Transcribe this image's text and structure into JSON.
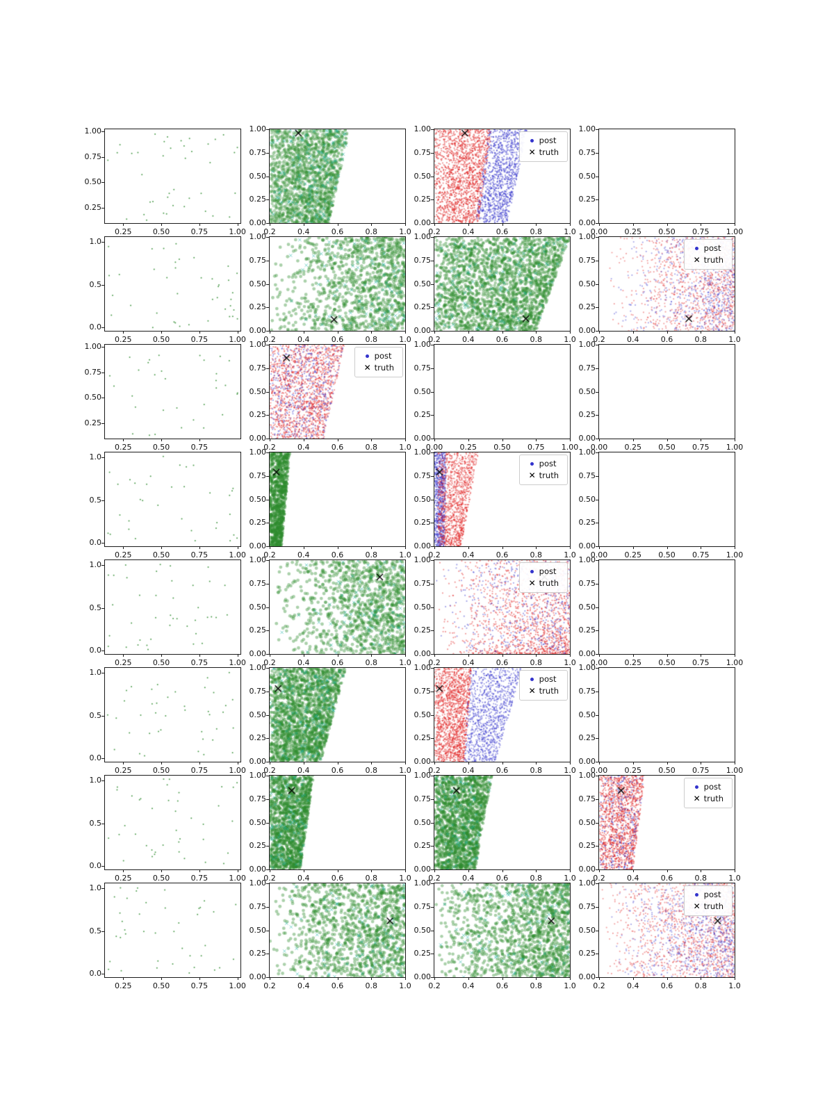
{
  "legend": {
    "post_label": "post",
    "truth_label": "truth"
  },
  "colors": {
    "green": "#2e8b2e",
    "teal": "#1fb5a9",
    "red": "#e02020",
    "blue": "#3333cc",
    "truth": "#000000"
  },
  "chart_data": {
    "type": "scatter",
    "description": "8x4 grid of posterior-sample scatter subplots with truth markers",
    "rows": 8,
    "cols": 4,
    "tick_presets": {
      "A": {
        "labels": [
          "0.25",
          "0.50",
          "0.75",
          "1.00"
        ],
        "range": [
          0.13,
          1.02
        ]
      },
      "A3": {
        "labels": [
          "0.25",
          "0.50",
          "0.75"
        ],
        "range": [
          0.13,
          1.02
        ]
      },
      "B": {
        "labels": [
          "0.2",
          "0.4",
          "0.6",
          "0.8",
          "1.0"
        ],
        "range": [
          0.2,
          1.0
        ]
      },
      "C": {
        "labels": [
          "0.00",
          "0.25",
          "0.50",
          "0.75",
          "1.00"
        ],
        "range": [
          0.0,
          1.0
        ]
      },
      "yA": {
        "labels": [
          "0.25",
          "0.50",
          "0.75",
          "1.00"
        ],
        "range": [
          0.1,
          1.02
        ]
      },
      "yB": {
        "labels": [
          "0.0",
          "0.5",
          "1.0"
        ],
        "range": [
          -0.04,
          1.06
        ]
      },
      "yC": {
        "labels": [
          "0.00",
          "0.25",
          "0.50",
          "0.75",
          "1.00"
        ],
        "range": [
          0.0,
          1.0
        ]
      }
    },
    "panels": [
      {
        "r": 1,
        "c": 1,
        "xt": "A",
        "yt": "yA",
        "legend": false,
        "truth": null,
        "layers": [
          {
            "k": "u",
            "col": "green",
            "n": 40,
            "r": 1.0,
            "a": 0.85
          }
        ]
      },
      {
        "r": 1,
        "c": 2,
        "xt": "B",
        "yt": "yC",
        "legend": false,
        "truth": [
          0.37,
          0.96
        ],
        "layers": [
          {
            "k": "b",
            "col": "green",
            "n": 1800,
            "r": 2.2,
            "a": 0.35,
            "l0": 0.2,
            "l1": 0,
            "b0": 0.55,
            "b1": 0.12
          },
          {
            "k": "b",
            "col": "teal",
            "n": 140,
            "r": 2.2,
            "a": 0.55,
            "l0": 0.2,
            "l1": 0,
            "b0": 0.55,
            "b1": 0.12,
            "m": "x"
          }
        ]
      },
      {
        "r": 1,
        "c": 3,
        "xt": "B",
        "yt": "yC",
        "legend": true,
        "truth": [
          0.38,
          0.96
        ],
        "layers": [
          {
            "k": "b",
            "col": "red",
            "n": 1600,
            "r": 1.1,
            "a": 0.5,
            "l0": 0.2,
            "l1": 0,
            "b0": 0.46,
            "b1": 0.08
          },
          {
            "k": "b",
            "col": "blue",
            "n": 1100,
            "r": 1.1,
            "a": 0.5,
            "l0": 0.44,
            "l1": 0.08,
            "b0": 0.63,
            "b1": 0.12
          }
        ]
      },
      {
        "r": 1,
        "c": 4,
        "xt": "C",
        "yt": "yC",
        "legend": false,
        "truth": null,
        "layers": []
      },
      {
        "r": 2,
        "c": 1,
        "xt": "A",
        "yt": "yB",
        "legend": false,
        "truth": null,
        "layers": [
          {
            "k": "u",
            "col": "green",
            "n": 40,
            "r": 1.0,
            "a": 0.85
          }
        ]
      },
      {
        "r": 2,
        "c": 2,
        "xt": "B",
        "yt": "yC",
        "legend": false,
        "truth": [
          0.58,
          0.12
        ],
        "layers": [
          {
            "k": "r",
            "col": "green",
            "n": 1100,
            "r": 2.4,
            "a": 0.4,
            "p": 2.0
          },
          {
            "k": "r",
            "col": "teal",
            "n": 90,
            "r": 2.2,
            "a": 0.55,
            "p": 2.0,
            "m": "x"
          }
        ]
      },
      {
        "r": 2,
        "c": 3,
        "xt": "B",
        "yt": "yC",
        "legend": false,
        "truth": [
          0.74,
          0.13
        ],
        "layers": [
          {
            "k": "b",
            "col": "green",
            "n": 2300,
            "r": 2.2,
            "a": 0.4,
            "l0": 0.2,
            "l1": 0,
            "b0": 0.8,
            "b1": 0.2
          },
          {
            "k": "b",
            "col": "teal",
            "n": 130,
            "r": 2.2,
            "a": 0.55,
            "l0": 0.2,
            "l1": 0,
            "b0": 0.8,
            "b1": 0.2,
            "m": "x"
          }
        ]
      },
      {
        "r": 2,
        "c": 4,
        "xt": "B",
        "yt": "yC",
        "legend": true,
        "truth": [
          0.73,
          0.13
        ],
        "layers": [
          {
            "k": "r",
            "col": "red",
            "n": 1100,
            "r": 1.1,
            "a": 0.4,
            "p": 2.4
          },
          {
            "k": "r",
            "col": "blue",
            "n": 700,
            "r": 1.1,
            "a": 0.4,
            "p": 2.8
          }
        ]
      },
      {
        "r": 3,
        "c": 1,
        "xt": "A3",
        "yt": "yA",
        "legend": false,
        "truth": null,
        "layers": [
          {
            "k": "u",
            "col": "green",
            "n": 32,
            "r": 1.0,
            "a": 0.85
          }
        ]
      },
      {
        "r": 3,
        "c": 2,
        "xt": "B",
        "yt": "yC",
        "legend": true,
        "truth": [
          0.3,
          0.86
        ],
        "layers": [
          {
            "k": "b",
            "col": "red",
            "n": 1500,
            "r": 1.1,
            "a": 0.45,
            "l0": 0.2,
            "l1": 0,
            "b0": 0.52,
            "b1": 0.12
          },
          {
            "k": "b",
            "col": "blue",
            "n": 500,
            "r": 1.1,
            "a": 0.45,
            "l0": 0.2,
            "l1": 0,
            "b0": 0.52,
            "b1": 0.12
          }
        ]
      },
      {
        "r": 3,
        "c": 3,
        "xt": "C",
        "yt": "yC",
        "legend": false,
        "truth": null,
        "layers": []
      },
      {
        "r": 3,
        "c": 4,
        "xt": "C",
        "yt": "yC",
        "legend": false,
        "truth": null,
        "layers": []
      },
      {
        "r": 4,
        "c": 1,
        "xt": "A",
        "yt": "yB",
        "legend": false,
        "truth": null,
        "layers": [
          {
            "k": "u",
            "col": "green",
            "n": 34,
            "r": 1.0,
            "a": 0.85
          }
        ]
      },
      {
        "r": 4,
        "c": 2,
        "xt": "B",
        "yt": "yC",
        "legend": false,
        "truth": [
          0.24,
          0.79
        ],
        "layers": [
          {
            "k": "b",
            "col": "green",
            "n": 800,
            "r": 2.2,
            "a": 0.5,
            "l0": 0.2,
            "l1": 0,
            "b0": 0.27,
            "b1": 0.05
          }
        ]
      },
      {
        "r": 4,
        "c": 3,
        "xt": "B",
        "yt": "yC",
        "legend": true,
        "truth": [
          0.23,
          0.79
        ],
        "layers": [
          {
            "k": "b",
            "col": "blue",
            "n": 700,
            "r": 1.1,
            "a": 0.5,
            "l0": 0.2,
            "l1": 0,
            "b0": 0.26,
            "b1": 0.01
          },
          {
            "k": "b",
            "col": "red",
            "n": 1200,
            "r": 1.1,
            "a": 0.45,
            "l0": 0.22,
            "l1": 0,
            "b0": 0.36,
            "b1": 0.1
          }
        ]
      },
      {
        "r": 4,
        "c": 4,
        "xt": "C",
        "yt": "yC",
        "legend": false,
        "truth": null,
        "layers": []
      },
      {
        "r": 5,
        "c": 1,
        "xt": "A",
        "yt": "yB",
        "legend": false,
        "truth": null,
        "layers": [
          {
            "k": "u",
            "col": "green",
            "n": 40,
            "r": 1.0,
            "a": 0.85
          }
        ]
      },
      {
        "r": 5,
        "c": 2,
        "xt": "B",
        "yt": "yC",
        "legend": false,
        "truth": [
          0.85,
          0.82
        ],
        "layers": [
          {
            "k": "r",
            "col": "green",
            "n": 1100,
            "r": 2.4,
            "a": 0.4,
            "p": 2.0
          },
          {
            "k": "r",
            "col": "teal",
            "n": 80,
            "r": 2.2,
            "a": 0.55,
            "p": 2.0,
            "m": "x"
          }
        ]
      },
      {
        "r": 5,
        "c": 3,
        "xt": "B",
        "yt": "yC",
        "legend": true,
        "truth": [
          0.85,
          0.82
        ],
        "layers": [
          {
            "k": "r",
            "col": "red",
            "n": 1400,
            "r": 1.1,
            "a": 0.45,
            "p": 2.2,
            "yp": 1.5
          },
          {
            "k": "r",
            "col": "blue",
            "n": 500,
            "r": 1.1,
            "a": 0.45,
            "p": 2.0
          }
        ]
      },
      {
        "r": 5,
        "c": 4,
        "xt": "C",
        "yt": "yC",
        "legend": false,
        "truth": null,
        "layers": []
      },
      {
        "r": 6,
        "c": 1,
        "xt": "A",
        "yt": "yB",
        "legend": false,
        "truth": null,
        "layers": [
          {
            "k": "u",
            "col": "green",
            "n": 40,
            "r": 1.0,
            "a": 0.85
          }
        ]
      },
      {
        "r": 6,
        "c": 2,
        "xt": "B",
        "yt": "yC",
        "legend": false,
        "truth": [
          0.25,
          0.78
        ],
        "layers": [
          {
            "k": "b",
            "col": "green",
            "n": 2000,
            "r": 2.2,
            "a": 0.4,
            "l0": 0.2,
            "l1": 0,
            "b0": 0.5,
            "b1": 0.15
          },
          {
            "k": "b",
            "col": "teal",
            "n": 120,
            "r": 2.2,
            "a": 0.55,
            "l0": 0.2,
            "l1": 0,
            "b0": 0.5,
            "b1": 0.15,
            "m": "x"
          }
        ]
      },
      {
        "r": 6,
        "c": 3,
        "xt": "B",
        "yt": "yC",
        "legend": true,
        "truth": [
          0.23,
          0.78
        ],
        "layers": [
          {
            "k": "b",
            "col": "red",
            "n": 1600,
            "r": 1.1,
            "a": 0.45,
            "l0": 0.2,
            "l1": 0,
            "b0": 0.38,
            "b1": 0.04
          },
          {
            "k": "b",
            "col": "blue",
            "n": 1100,
            "r": 1.1,
            "a": 0.45,
            "l0": 0.37,
            "l1": 0.04,
            "b0": 0.56,
            "b1": 0.16
          }
        ]
      },
      {
        "r": 6,
        "c": 4,
        "xt": "C",
        "yt": "yC",
        "legend": false,
        "truth": null,
        "layers": []
      },
      {
        "r": 7,
        "c": 1,
        "xt": "A",
        "yt": "yB",
        "legend": false,
        "truth": null,
        "layers": [
          {
            "k": "u",
            "col": "green",
            "n": 40,
            "r": 1.0,
            "a": 0.85
          }
        ]
      },
      {
        "r": 7,
        "c": 2,
        "xt": "B",
        "yt": "yC",
        "legend": false,
        "truth": [
          0.33,
          0.84
        ],
        "layers": [
          {
            "k": "b",
            "col": "green",
            "n": 1400,
            "r": 2.2,
            "a": 0.45,
            "l0": 0.2,
            "l1": 0,
            "b0": 0.38,
            "b1": 0.08
          },
          {
            "k": "b",
            "col": "teal",
            "n": 80,
            "r": 2.2,
            "a": 0.55,
            "l0": 0.2,
            "l1": 0,
            "b0": 0.38,
            "b1": 0.08,
            "m": "x"
          }
        ]
      },
      {
        "r": 7,
        "c": 3,
        "xt": "B",
        "yt": "yC",
        "legend": false,
        "truth": [
          0.33,
          0.84
        ],
        "layers": [
          {
            "k": "b",
            "col": "green",
            "n": 1600,
            "r": 2.2,
            "a": 0.45,
            "l0": 0.2,
            "l1": 0,
            "b0": 0.44,
            "b1": 0.1
          },
          {
            "k": "b",
            "col": "teal",
            "n": 90,
            "r": 2.2,
            "a": 0.55,
            "l0": 0.2,
            "l1": 0,
            "b0": 0.44,
            "b1": 0.1,
            "m": "x"
          }
        ]
      },
      {
        "r": 7,
        "c": 4,
        "xt": "B",
        "yt": "yC",
        "legend": true,
        "truth": [
          0.33,
          0.84
        ],
        "layers": [
          {
            "k": "b",
            "col": "red",
            "n": 1300,
            "r": 1.1,
            "a": 0.5,
            "l0": 0.2,
            "l1": 0,
            "b0": 0.4,
            "b1": 0.07
          },
          {
            "k": "b",
            "col": "blue",
            "n": 260,
            "r": 1.1,
            "a": 0.5,
            "l0": 0.2,
            "l1": 0,
            "b0": 0.4,
            "b1": 0.07
          }
        ]
      },
      {
        "r": 8,
        "c": 1,
        "xt": "A",
        "yt": "yB",
        "legend": false,
        "truth": null,
        "layers": [
          {
            "k": "u",
            "col": "green",
            "n": 40,
            "r": 1.0,
            "a": 0.85
          }
        ]
      },
      {
        "r": 8,
        "c": 2,
        "xt": "B",
        "yt": "yC",
        "legend": false,
        "truth": [
          0.91,
          0.6
        ],
        "layers": [
          {
            "k": "r",
            "col": "green",
            "n": 1200,
            "r": 2.4,
            "a": 0.4,
            "p": 1.8
          },
          {
            "k": "r",
            "col": "teal",
            "n": 80,
            "r": 2.2,
            "a": 0.55,
            "p": 1.8,
            "m": "x"
          }
        ]
      },
      {
        "r": 8,
        "c": 3,
        "xt": "B",
        "yt": "yC",
        "legend": false,
        "truth": [
          0.89,
          0.6
        ],
        "layers": [
          {
            "k": "r",
            "col": "green",
            "n": 1500,
            "r": 2.3,
            "a": 0.4,
            "p": 1.8
          },
          {
            "k": "r",
            "col": "teal",
            "n": 90,
            "r": 2.2,
            "a": 0.55,
            "p": 1.8,
            "m": "x"
          }
        ]
      },
      {
        "r": 8,
        "c": 4,
        "xt": "B",
        "yt": "yC",
        "legend": true,
        "truth": [
          0.9,
          0.6
        ],
        "layers": [
          {
            "k": "r",
            "col": "red",
            "n": 1300,
            "r": 1.1,
            "a": 0.4,
            "p": 2.2
          },
          {
            "k": "r",
            "col": "blue",
            "n": 850,
            "r": 1.1,
            "a": 0.4,
            "p": 2.6
          }
        ]
      }
    ]
  }
}
